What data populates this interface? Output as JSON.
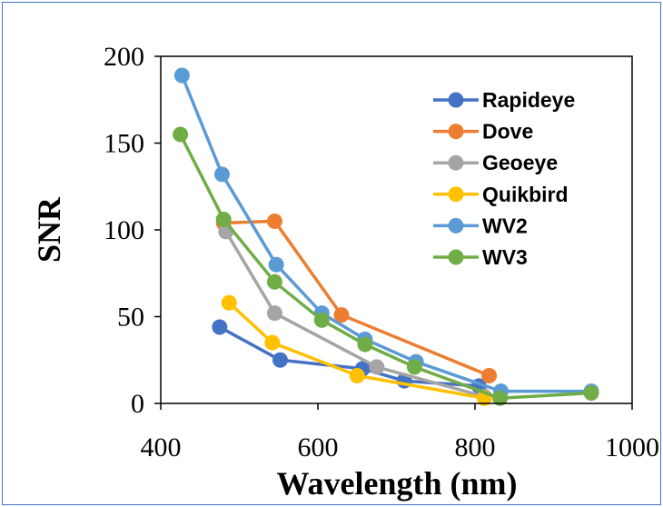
{
  "chart_data": {
    "type": "line",
    "title": "",
    "xlabel": "Wavelength (nm)",
    "ylabel": "SNR",
    "xlim": [
      400,
      1000
    ],
    "ylim": [
      0,
      200
    ],
    "xticks": [
      400,
      600,
      800,
      1000
    ],
    "yticks": [
      0,
      50,
      100,
      150,
      200
    ],
    "grid": false,
    "legend_position": "top-right",
    "series": [
      {
        "name": "Rapideye",
        "color": "#4472C4",
        "x": [
          475,
          552,
          657,
          710,
          805
        ],
        "y": [
          44,
          25,
          20,
          13,
          10
        ]
      },
      {
        "name": "Dove",
        "color": "#ED7D31",
        "x": [
          480,
          545,
          630,
          818
        ],
        "y": [
          104,
          105,
          51,
          16
        ]
      },
      {
        "name": "Geoeye",
        "color": "#A5A5A5",
        "x": [
          483,
          545,
          675,
          812
        ],
        "y": [
          99,
          52,
          21,
          4
        ]
      },
      {
        "name": "Quikbird",
        "color": "#FFC000",
        "x": [
          487,
          542,
          650,
          812
        ],
        "y": [
          58,
          35,
          16,
          3
        ]
      },
      {
        "name": "WV2",
        "color": "#5B9BD5",
        "x": [
          427,
          478,
          547,
          605,
          660,
          725,
          833,
          948
        ],
        "y": [
          189,
          132,
          80,
          52,
          37,
          24,
          7,
          7
        ]
      },
      {
        "name": "WV3",
        "color": "#70AD47",
        "x": [
          425,
          480,
          545,
          605,
          660,
          723,
          832,
          948
        ],
        "y": [
          155,
          106,
          70,
          48,
          34,
          21,
          3,
          6
        ]
      }
    ]
  }
}
